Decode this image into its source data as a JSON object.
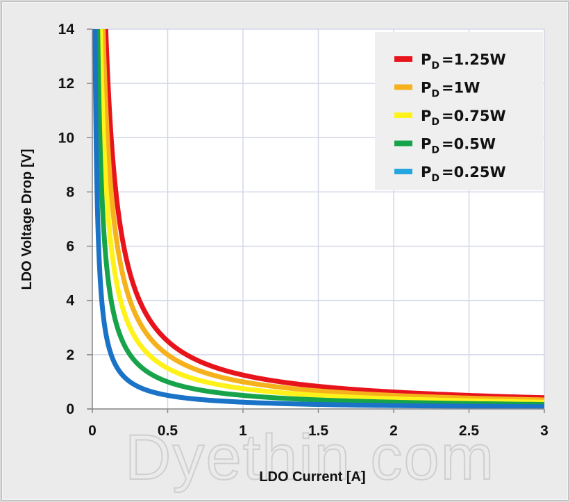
{
  "chart_data": {
    "type": "line",
    "title": "",
    "xlabel": "LDO Current [A]",
    "ylabel": "LDO Voltage Drop [V]",
    "xlim": [
      0,
      3
    ],
    "ylim": [
      0,
      14
    ],
    "x_ticks": [
      "0",
      "0.5",
      "1",
      "1.5",
      "2",
      "2.5",
      "3"
    ],
    "y_ticks": [
      "0",
      "2",
      "4",
      "6",
      "8",
      "10",
      "12",
      "14"
    ],
    "grid": true,
    "legend_position": "upper right",
    "relation": "V = P_D / I",
    "series": [
      {
        "name": "P_D=1.25W",
        "label_main": "P",
        "label_sub": "D",
        "label_value": "=1.25W",
        "power": 1.25,
        "color": "#e8141c",
        "x": [
          0.09,
          0.1,
          0.25,
          0.5,
          1,
          1.5,
          2,
          2.5,
          3
        ],
        "y": [
          13.9,
          12.5,
          5.0,
          2.5,
          1.25,
          0.83,
          0.63,
          0.5,
          0.42
        ]
      },
      {
        "name": "P_D=1W",
        "label_main": "P",
        "label_sub": "D",
        "label_value": "=1W",
        "power": 1.0,
        "color": "#f5b21c",
        "x": [
          0.072,
          0.1,
          0.25,
          0.5,
          1,
          1.5,
          2,
          2.5,
          3
        ],
        "y": [
          13.9,
          10.0,
          4.0,
          2.0,
          1.0,
          0.67,
          0.5,
          0.4,
          0.33
        ]
      },
      {
        "name": "P_D=0.75W",
        "label_main": "P",
        "label_sub": "D",
        "label_value": "=0.75W",
        "power": 0.75,
        "color": "#fff21a",
        "x": [
          0.054,
          0.1,
          0.25,
          0.5,
          1,
          1.5,
          2,
          2.5,
          3
        ],
        "y": [
          13.9,
          7.5,
          3.0,
          1.5,
          0.75,
          0.5,
          0.38,
          0.3,
          0.25
        ]
      },
      {
        "name": "P_D=0.5W",
        "label_main": "P",
        "label_sub": "D",
        "label_value": "=0.5W",
        "power": 0.5,
        "color": "#17a34a",
        "x": [
          0.036,
          0.1,
          0.25,
          0.5,
          1,
          1.5,
          2,
          2.5,
          3
        ],
        "y": [
          13.9,
          5.0,
          2.0,
          1.0,
          0.5,
          0.33,
          0.25,
          0.2,
          0.17
        ]
      },
      {
        "name": "P_D=0.25W",
        "label_main": "P",
        "label_sub": "D",
        "label_value": "=0.25W",
        "power": 0.25,
        "color": "#1a73c7",
        "x": [
          0.018,
          0.1,
          0.25,
          0.5,
          1,
          1.5,
          2,
          2.5,
          3
        ],
        "y": [
          13.9,
          2.5,
          1.0,
          0.5,
          0.25,
          0.17,
          0.13,
          0.1,
          0.08
        ]
      }
    ],
    "legend_swatch_colors": [
      "#e8141c",
      "#f5b21c",
      "#fff21a",
      "#17a34a",
      "#26a6e0"
    ]
  },
  "watermark": "Dyethin.com"
}
